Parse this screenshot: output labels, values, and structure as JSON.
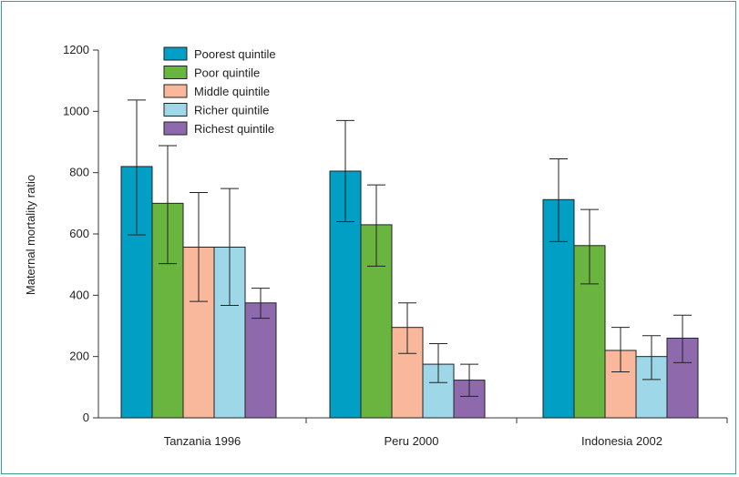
{
  "chart_data": {
    "type": "bar",
    "title": "",
    "xlabel": "",
    "ylabel": "Maternal mortality ratio",
    "ylim": [
      0,
      1200
    ],
    "yticks": [
      0,
      200,
      400,
      600,
      800,
      1000,
      1200
    ],
    "categories": [
      "Tanzania 1996",
      "Peru 2000",
      "Indonesia 2002"
    ],
    "legend_position": "top-left",
    "grid": false,
    "series": [
      {
        "name": "Poorest quintile",
        "color": "#009fc3",
        "values": [
          820,
          805,
          712
        ],
        "err_low": [
          597,
          640,
          575
        ],
        "err_high": [
          1037,
          970,
          845
        ]
      },
      {
        "name": "Poor quintile",
        "color": "#6ab53f",
        "values": [
          700,
          630,
          562
        ],
        "err_low": [
          503,
          495,
          437
        ],
        "err_high": [
          888,
          760,
          680
        ]
      },
      {
        "name": "Middle quintile",
        "color": "#f9b89c",
        "values": [
          557,
          295,
          220
        ],
        "err_low": [
          380,
          210,
          150
        ],
        "err_high": [
          735,
          375,
          295
        ]
      },
      {
        "name": "Richer quintile",
        "color": "#9ed7e7",
        "values": [
          557,
          175,
          200
        ],
        "err_low": [
          367,
          115,
          125
        ],
        "err_high": [
          748,
          242,
          268
        ]
      },
      {
        "name": "Richest quintile",
        "color": "#8e6aad",
        "values": [
          375,
          123,
          260
        ],
        "err_low": [
          325,
          70,
          180
        ],
        "err_high": [
          423,
          175,
          335
        ]
      }
    ]
  }
}
